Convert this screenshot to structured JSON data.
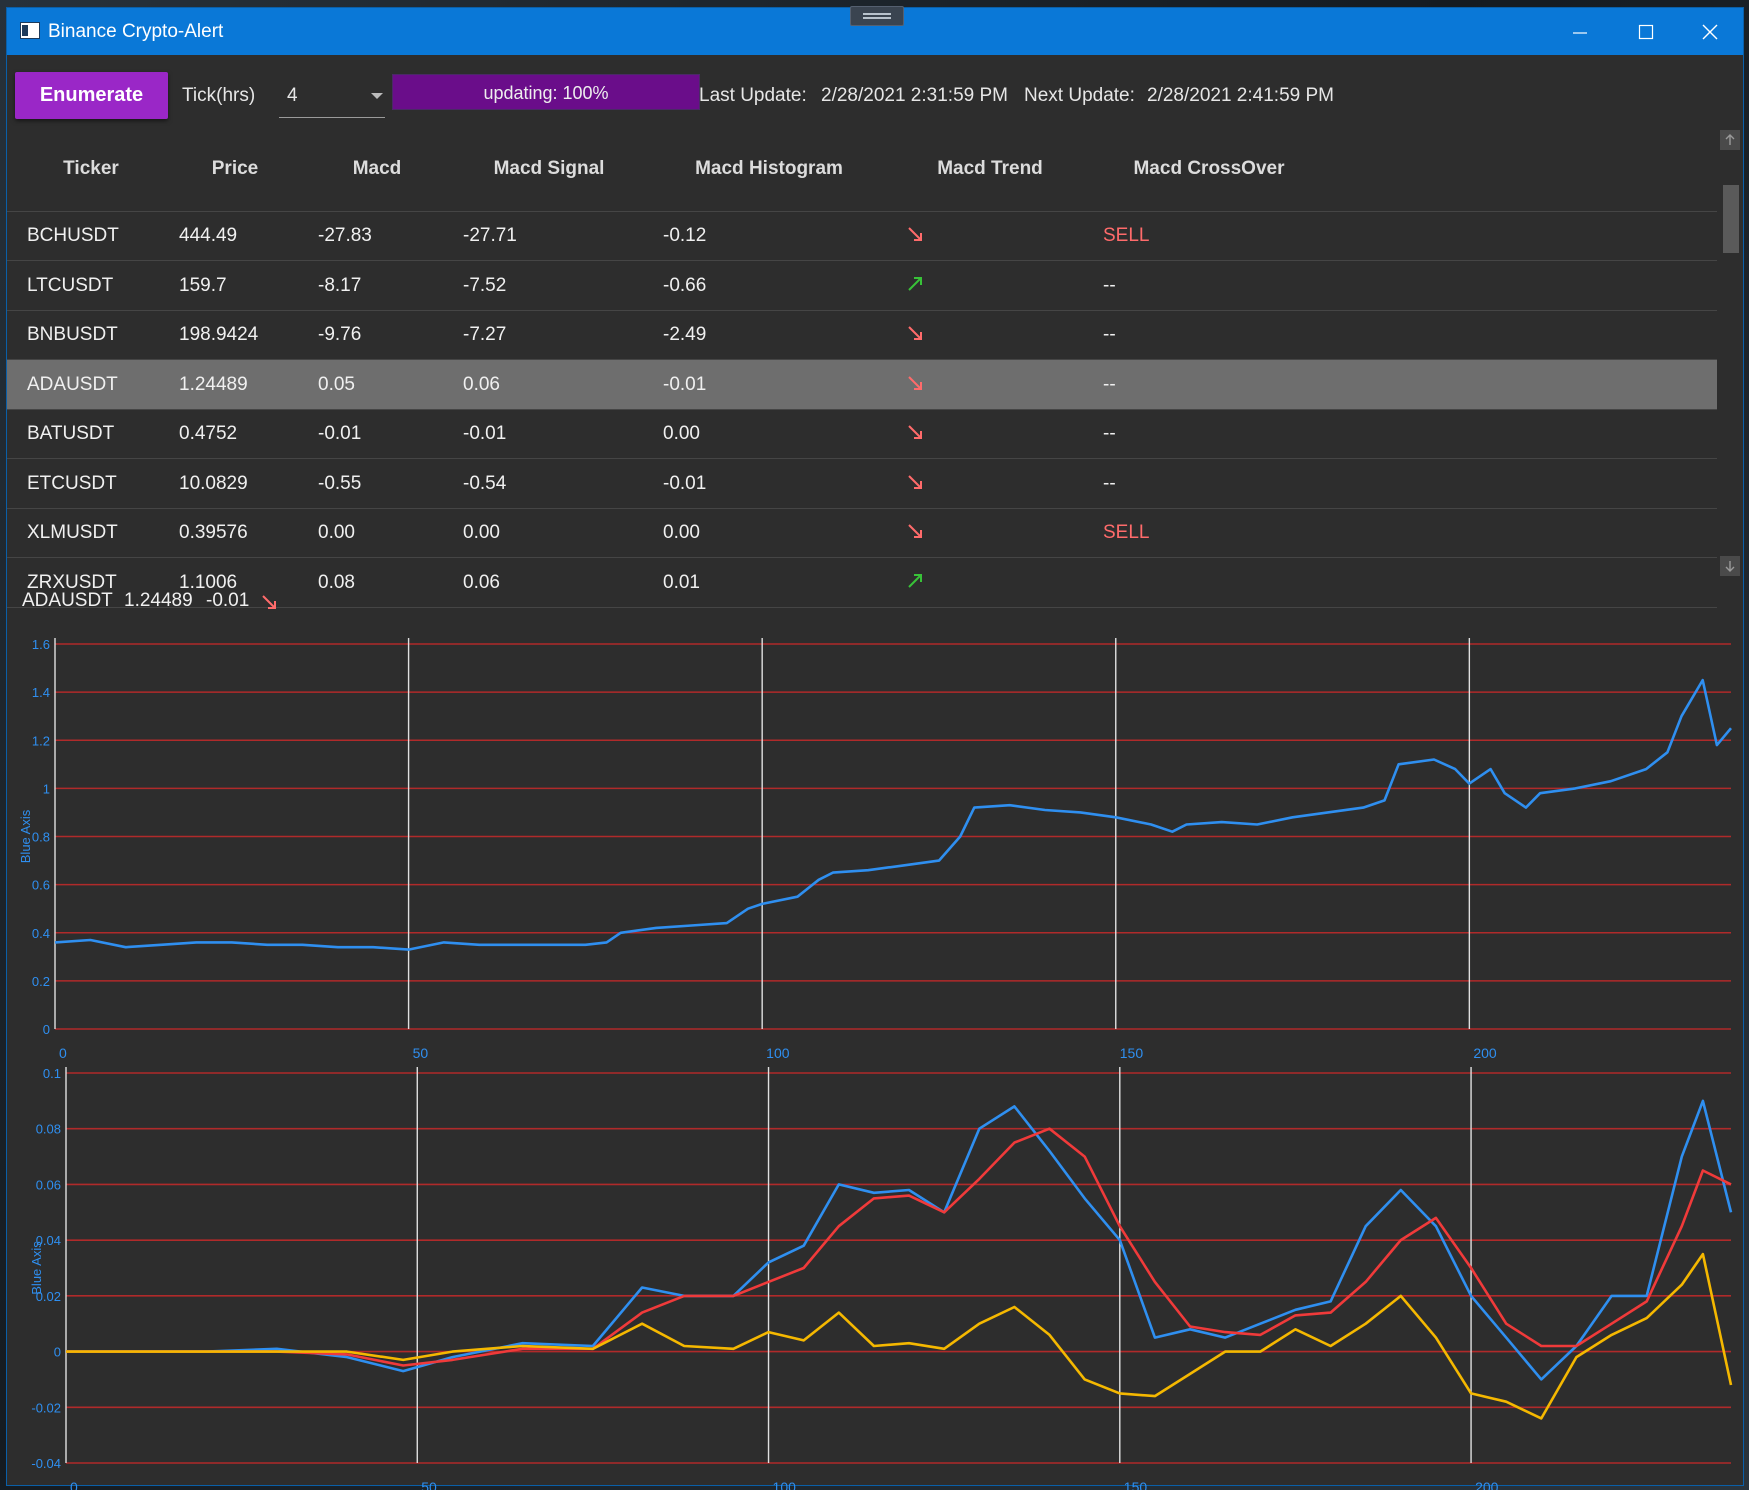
{
  "window": {
    "title": "Binance Crypto-Alert",
    "icons": {
      "minimize": "minimize-icon",
      "maximize": "maximize-icon",
      "close": "close-icon",
      "app": "app-window-icon"
    }
  },
  "toolbar": {
    "enumerate_label": "Enumerate",
    "tick_label": "Tick(hrs)",
    "tick_value": "4",
    "progress_text": "updating: 100%",
    "progress_percent": 100,
    "last_update_label": "Last Update:",
    "last_update_value": "2/28/2021 2:31:59 PM",
    "next_update_label": "Next Update:",
    "next_update_value": "2/28/2021 2:41:59 PM"
  },
  "colors": {
    "accent_button": "#9a27c7",
    "progress_fill": "#6a0d8a",
    "titlebar": "#0a78d7",
    "sell": "#ff6b6b",
    "trend_up": "#38c238",
    "trend_down": "#ff6b6b",
    "series_blue": "#2f8ff0",
    "series_red": "#f03a3a",
    "series_yellow": "#f5b800"
  },
  "grid": {
    "columns": [
      "Ticker",
      "Price",
      "Macd",
      "Macd Signal",
      "Macd Histogram",
      "Macd Trend",
      "Macd CrossOver"
    ],
    "rows": [
      {
        "ticker": "BCHUSDT",
        "price": "444.49",
        "macd": "-27.83",
        "signal": "-27.71",
        "histogram": "-0.12",
        "trend": "down",
        "crossover": "SELL"
      },
      {
        "ticker": "LTCUSDT",
        "price": "159.7",
        "macd": "-8.17",
        "signal": "-7.52",
        "histogram": "-0.66",
        "trend": "up",
        "crossover": "--"
      },
      {
        "ticker": "BNBUSDT",
        "price": "198.9424",
        "macd": "-9.76",
        "signal": "-7.27",
        "histogram": "-2.49",
        "trend": "down",
        "crossover": "--"
      },
      {
        "ticker": "ADAUSDT",
        "price": "1.24489",
        "macd": "0.05",
        "signal": "0.06",
        "histogram": "-0.01",
        "trend": "down",
        "crossover": "--",
        "selected": true
      },
      {
        "ticker": "BATUSDT",
        "price": "0.4752",
        "macd": "-0.01",
        "signal": "-0.01",
        "histogram": "0.00",
        "trend": "down",
        "crossover": "--"
      },
      {
        "ticker": "ETCUSDT",
        "price": "10.0829",
        "macd": "-0.55",
        "signal": "-0.54",
        "histogram": "-0.01",
        "trend": "down",
        "crossover": "--"
      },
      {
        "ticker": "XLMUSDT",
        "price": "0.39576",
        "macd": "0.00",
        "signal": "0.00",
        "histogram": "0.00",
        "trend": "down",
        "crossover": "SELL"
      },
      {
        "ticker": "ZRXUSDT",
        "price": "1.1006",
        "macd": "0.08",
        "signal": "0.06",
        "histogram": "0.01",
        "trend": "up",
        "crossover": ""
      }
    ]
  },
  "summary": {
    "ticker": "ADAUSDT",
    "price": "1.24489",
    "histogram": "-0.01",
    "trend": "down"
  },
  "chart_data": [
    {
      "type": "line",
      "ylabel": "Blue Axis",
      "xlim": [
        0,
        237
      ],
      "ylim": [
        0,
        1.6
      ],
      "xticks": [
        0,
        50,
        100,
        150,
        200
      ],
      "yticks": [
        0,
        0.2,
        0.4,
        0.6,
        0.8,
        1,
        1.2,
        1.4,
        1.6
      ],
      "ytick_labels": [
        "0",
        "0.2",
        "0.4",
        "0.6",
        "0.8",
        "1",
        "1.2",
        "1.4",
        "1.6"
      ],
      "grid": true,
      "series": [
        {
          "color": "#2f8ff0",
          "x": [
            0,
            5,
            10,
            15,
            20,
            25,
            30,
            35,
            40,
            45,
            50,
            55,
            60,
            65,
            70,
            75,
            78,
            80,
            85,
            90,
            95,
            98,
            100,
            105,
            108,
            110,
            115,
            120,
            125,
            128,
            130,
            135,
            140,
            145,
            150,
            155,
            158,
            160,
            165,
            170,
            175,
            180,
            185,
            188,
            190,
            195,
            198,
            200,
            203,
            205,
            208,
            210,
            215,
            220,
            225,
            228,
            230,
            233,
            235,
            237
          ],
          "values": [
            0.36,
            0.37,
            0.34,
            0.35,
            0.36,
            0.36,
            0.35,
            0.35,
            0.34,
            0.34,
            0.33,
            0.36,
            0.35,
            0.35,
            0.35,
            0.35,
            0.36,
            0.4,
            0.42,
            0.43,
            0.44,
            0.5,
            0.52,
            0.55,
            0.62,
            0.65,
            0.66,
            0.68,
            0.7,
            0.8,
            0.92,
            0.93,
            0.91,
            0.9,
            0.88,
            0.85,
            0.82,
            0.85,
            0.86,
            0.85,
            0.88,
            0.9,
            0.92,
            0.95,
            1.1,
            1.12,
            1.08,
            1.02,
            1.08,
            0.98,
            0.92,
            0.98,
            1.0,
            1.03,
            1.08,
            1.15,
            1.3,
            1.45,
            1.18,
            1.25
          ]
        }
      ]
    },
    {
      "type": "line",
      "ylabel": "Blue Axis",
      "xlim": [
        0,
        237
      ],
      "ylim": [
        -0.04,
        0.1
      ],
      "xticks": [
        0,
        50,
        100,
        150,
        200
      ],
      "yticks": [
        -0.04,
        -0.02,
        0,
        0.02,
        0.04,
        0.06,
        0.08,
        0.1
      ],
      "ytick_labels": [
        "-0.04",
        "-0.02",
        "0",
        "0.02",
        "0.04",
        "0.06",
        "0.08",
        "0.1"
      ],
      "grid": true,
      "series": [
        {
          "color": "#2f8ff0",
          "x": [
            0,
            20,
            30,
            40,
            48,
            55,
            65,
            75,
            82,
            88,
            95,
            100,
            105,
            110,
            115,
            120,
            125,
            130,
            135,
            140,
            145,
            150,
            155,
            160,
            165,
            170,
            175,
            180,
            185,
            190,
            195,
            200,
            205,
            210,
            215,
            220,
            225,
            230,
            233,
            237
          ],
          "values": [
            0,
            0,
            0.001,
            -0.002,
            -0.007,
            -0.002,
            0.003,
            0.002,
            0.023,
            0.02,
            0.02,
            0.032,
            0.038,
            0.06,
            0.057,
            0.058,
            0.05,
            0.08,
            0.088,
            0.072,
            0.055,
            0.04,
            0.005,
            0.008,
            0.005,
            0.01,
            0.015,
            0.018,
            0.045,
            0.058,
            0.045,
            0.02,
            0.005,
            -0.01,
            0.002,
            0.02,
            0.02,
            0.07,
            0.09,
            0.05
          ]
        },
        {
          "color": "#f03a3a",
          "x": [
            0,
            20,
            30,
            40,
            48,
            55,
            65,
            75,
            82,
            88,
            95,
            100,
            105,
            110,
            115,
            120,
            125,
            130,
            135,
            140,
            145,
            150,
            155,
            160,
            165,
            170,
            175,
            180,
            185,
            190,
            195,
            200,
            205,
            210,
            215,
            220,
            225,
            230,
            233,
            237
          ],
          "values": [
            0,
            0,
            0,
            -0.001,
            -0.005,
            -0.003,
            0.001,
            0.001,
            0.014,
            0.02,
            0.02,
            0.025,
            0.03,
            0.045,
            0.055,
            0.056,
            0.05,
            0.062,
            0.075,
            0.08,
            0.07,
            0.045,
            0.025,
            0.009,
            0.007,
            0.006,
            0.013,
            0.014,
            0.025,
            0.04,
            0.048,
            0.03,
            0.01,
            0.002,
            0.002,
            0.01,
            0.018,
            0.045,
            0.065,
            0.06
          ]
        },
        {
          "color": "#f5b800",
          "x": [
            0,
            20,
            30,
            40,
            48,
            55,
            65,
            75,
            82,
            88,
            95,
            100,
            105,
            110,
            115,
            120,
            125,
            130,
            135,
            140,
            145,
            150,
            155,
            160,
            165,
            170,
            175,
            180,
            185,
            190,
            195,
            200,
            205,
            210,
            215,
            220,
            225,
            230,
            233,
            237
          ],
          "values": [
            0,
            0,
            0,
            0,
            -0.003,
            0,
            0.002,
            0.001,
            0.01,
            0.002,
            0.001,
            0.007,
            0.004,
            0.014,
            0.002,
            0.003,
            0.001,
            0.01,
            0.016,
            0.006,
            -0.01,
            -0.015,
            -0.016,
            -0.008,
            0,
            0,
            0.008,
            0.002,
            0.01,
            0.02,
            0.005,
            -0.015,
            -0.018,
            -0.024,
            -0.002,
            0.006,
            0.012,
            0.024,
            0.035,
            -0.012
          ]
        }
      ]
    }
  ]
}
